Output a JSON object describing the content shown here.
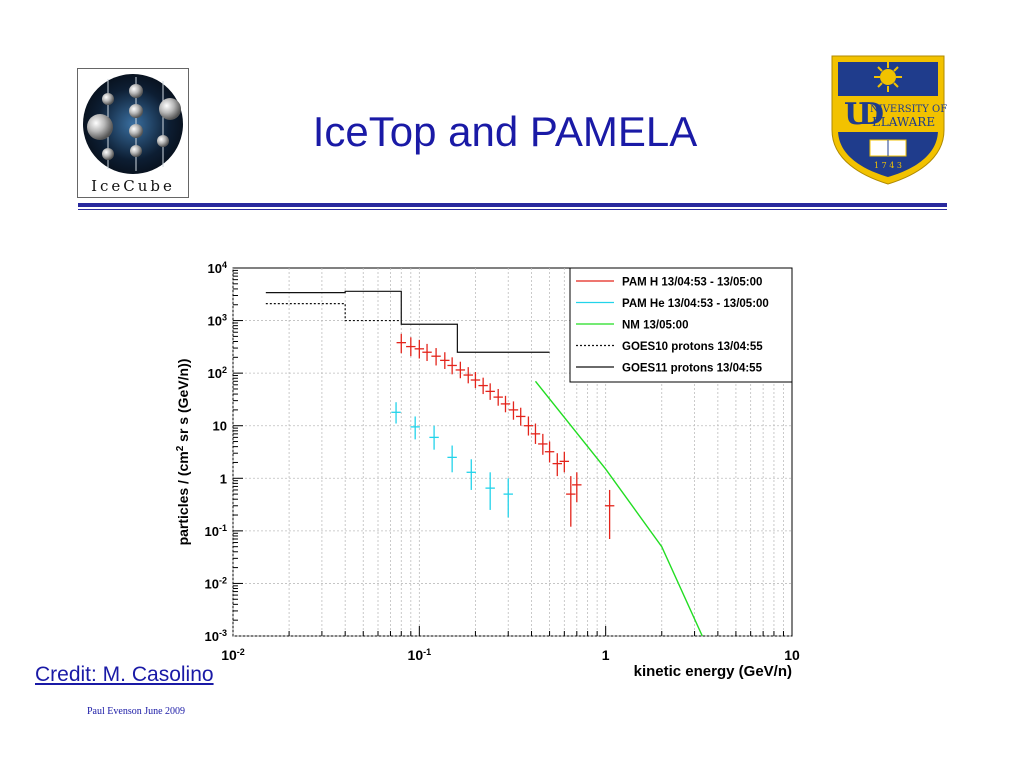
{
  "slide": {
    "title": "IceTop and PAMELA",
    "credit": "Credit: M. Casolino",
    "footer": "Paul Evenson  June 2009"
  },
  "logos": {
    "left_caption": "IceCube",
    "right_line1": "NIVERSITY OF",
    "right_line2": "ELAWARE",
    "right_year": "1 7 4 3",
    "right_accent_color": "#f2c200",
    "right_shield_color": "#1f3c8c"
  },
  "colors": {
    "title": "#1a1aa6",
    "rule": "#2a2a9e"
  },
  "chart_data": {
    "type": "scatter",
    "xscale": "log",
    "yscale": "log",
    "xlim": [
      0.01,
      10
    ],
    "ylim": [
      0.001,
      10000
    ],
    "xlabel": "kinetic energy (GeV/n)",
    "ylabel": "particles / (cm² sr s (GeV/n))",
    "grid": true,
    "legend_position": "top-right",
    "x_ticks": [
      {
        "value": 0.01,
        "base": "10",
        "exp": "-2"
      },
      {
        "value": 0.1,
        "base": "10",
        "exp": "-1"
      },
      {
        "value": 1,
        "base": "1",
        "exp": ""
      },
      {
        "value": 10,
        "base": "10",
        "exp": ""
      }
    ],
    "y_ticks": [
      {
        "value": 0.001,
        "base": "10",
        "exp": "-3"
      },
      {
        "value": 0.01,
        "base": "10",
        "exp": "-2"
      },
      {
        "value": 0.1,
        "base": "10",
        "exp": "-1"
      },
      {
        "value": 1,
        "base": "1",
        "exp": ""
      },
      {
        "value": 10,
        "base": "10",
        "exp": ""
      },
      {
        "value": 100,
        "base": "10",
        "exp": "2"
      },
      {
        "value": 1000,
        "base": "10",
        "exp": "3"
      },
      {
        "value": 10000,
        "base": "10",
        "exp": "4"
      }
    ],
    "series": [
      {
        "name": "PAM H 13/04:53 - 13/05:00",
        "kind": "errorbars",
        "color": "#e3241b",
        "points": [
          {
            "x": 0.08,
            "y": 380,
            "ylo": 240,
            "yhi": 560
          },
          {
            "x": 0.09,
            "y": 320,
            "ylo": 210,
            "yhi": 480
          },
          {
            "x": 0.1,
            "y": 290,
            "ylo": 190,
            "yhi": 430
          },
          {
            "x": 0.11,
            "y": 250,
            "ylo": 170,
            "yhi": 360
          },
          {
            "x": 0.123,
            "y": 210,
            "ylo": 140,
            "yhi": 300
          },
          {
            "x": 0.137,
            "y": 175,
            "ylo": 120,
            "yhi": 250
          },
          {
            "x": 0.15,
            "y": 140,
            "ylo": 95,
            "yhi": 200
          },
          {
            "x": 0.166,
            "y": 115,
            "ylo": 80,
            "yhi": 165
          },
          {
            "x": 0.183,
            "y": 92,
            "ylo": 64,
            "yhi": 130
          },
          {
            "x": 0.2,
            "y": 74,
            "ylo": 52,
            "yhi": 105
          },
          {
            "x": 0.22,
            "y": 58,
            "ylo": 40,
            "yhi": 82
          },
          {
            "x": 0.24,
            "y": 45,
            "ylo": 31,
            "yhi": 64
          },
          {
            "x": 0.265,
            "y": 35,
            "ylo": 24,
            "yhi": 50
          },
          {
            "x": 0.29,
            "y": 26,
            "ylo": 18,
            "yhi": 37
          },
          {
            "x": 0.32,
            "y": 20,
            "ylo": 13,
            "yhi": 29
          },
          {
            "x": 0.35,
            "y": 15,
            "ylo": 10,
            "yhi": 22
          },
          {
            "x": 0.385,
            "y": 10,
            "ylo": 6.5,
            "yhi": 15
          },
          {
            "x": 0.42,
            "y": 7,
            "ylo": 4.5,
            "yhi": 11
          },
          {
            "x": 0.46,
            "y": 4.5,
            "ylo": 2.8,
            "yhi": 7
          },
          {
            "x": 0.5,
            "y": 3.2,
            "ylo": 2.0,
            "yhi": 5
          },
          {
            "x": 0.55,
            "y": 1.9,
            "ylo": 1.1,
            "yhi": 3.0
          },
          {
            "x": 0.6,
            "y": 2.1,
            "ylo": 1.3,
            "yhi": 3.2
          },
          {
            "x": 0.65,
            "y": 0.5,
            "ylo": 0.12,
            "yhi": 1.1
          },
          {
            "x": 0.7,
            "y": 0.75,
            "ylo": 0.35,
            "yhi": 1.3
          },
          {
            "x": 1.05,
            "y": 0.3,
            "ylo": 0.07,
            "yhi": 0.6
          }
        ]
      },
      {
        "name": "PAM He 13/04:53 - 13/05:00",
        "kind": "errorbars",
        "color": "#22d3ea",
        "points": [
          {
            "x": 0.075,
            "y": 18,
            "ylo": 11,
            "yhi": 28
          },
          {
            "x": 0.095,
            "y": 9.5,
            "ylo": 5.5,
            "yhi": 15
          },
          {
            "x": 0.12,
            "y": 6,
            "ylo": 3.5,
            "yhi": 10
          },
          {
            "x": 0.15,
            "y": 2.5,
            "ylo": 1.3,
            "yhi": 4.2
          },
          {
            "x": 0.19,
            "y": 1.3,
            "ylo": 0.6,
            "yhi": 2.3
          },
          {
            "x": 0.24,
            "y": 0.65,
            "ylo": 0.25,
            "yhi": 1.3
          },
          {
            "x": 0.3,
            "y": 0.5,
            "ylo": 0.18,
            "yhi": 1.0
          }
        ]
      },
      {
        "name": "NM 13/05:00",
        "kind": "line",
        "color": "#22dd22",
        "points": [
          {
            "x": 0.42,
            "y": 70
          },
          {
            "x": 1.0,
            "y": 1.5
          },
          {
            "x": 2.0,
            "y": 0.05
          },
          {
            "x": 3.3,
            "y": 0.001
          }
        ]
      },
      {
        "name": "GOES10 protons 13/04:55",
        "kind": "step",
        "color": "#111111",
        "dash": "2,2",
        "points": [
          {
            "x0": 0.015,
            "x1": 0.04,
            "y": 2100
          },
          {
            "x0": 0.04,
            "x1": 0.08,
            "y": 1000
          }
        ]
      },
      {
        "name": "GOES11 protons 13/04:55",
        "kind": "step",
        "color": "#111111",
        "dash": "",
        "points": [
          {
            "x0": 0.015,
            "x1": 0.04,
            "y": 3400
          },
          {
            "x0": 0.04,
            "x1": 0.08,
            "y": 3600
          },
          {
            "x0": 0.08,
            "x1": 0.16,
            "y": 850
          },
          {
            "x0": 0.16,
            "x1": 0.5,
            "y": 250
          }
        ]
      }
    ]
  }
}
